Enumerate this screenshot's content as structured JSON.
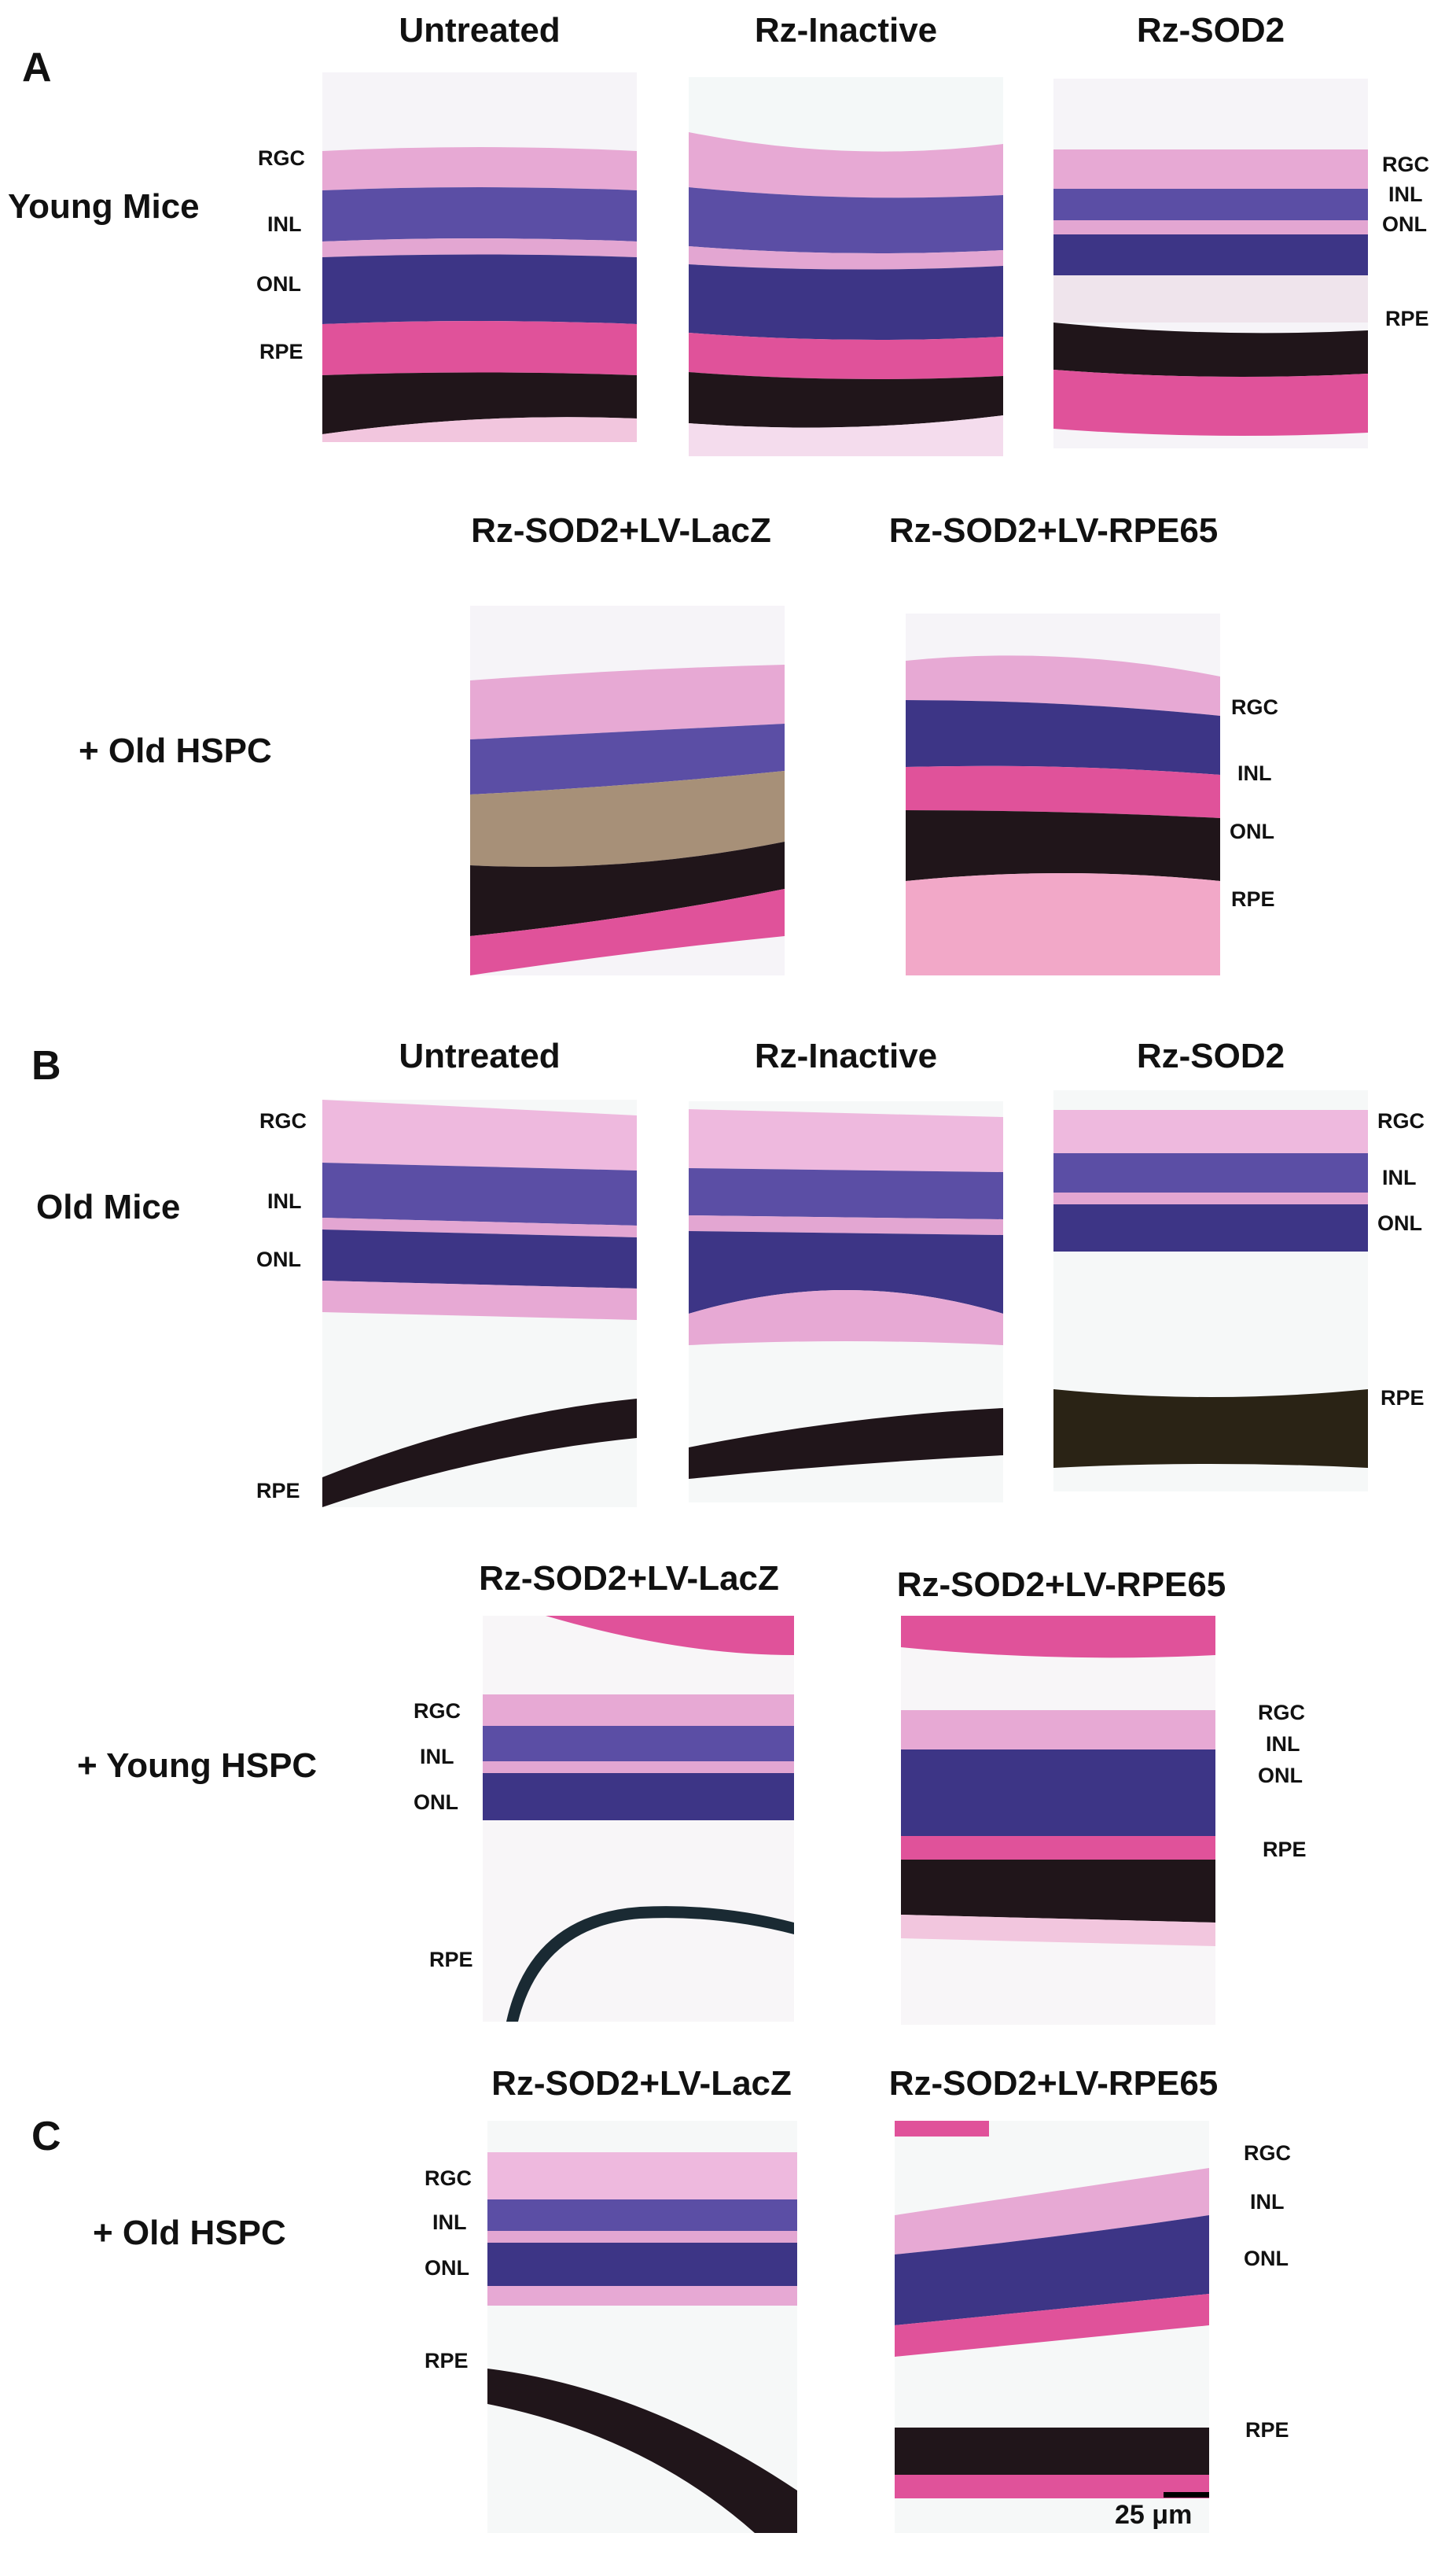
{
  "panels": {
    "A": {
      "letter": "A",
      "group1": "Young Mice",
      "group2": "+ Old HSPC",
      "titles": [
        "Untreated",
        "Rz-Inactive",
        "Rz-SOD2",
        "Rz-SOD2+LV-LacZ",
        "Rz-SOD2+LV-RPE65"
      ]
    },
    "B": {
      "letter": "B",
      "group1": "Old Mice",
      "group2": "+ Young HSPC",
      "titles": [
        "Untreated",
        "Rz-Inactive",
        "Rz-SOD2",
        "Rz-SOD2+LV-LacZ",
        "Rz-SOD2+LV-RPE65"
      ]
    },
    "C": {
      "letter": "C",
      "group1": "+ Old HSPC",
      "titles": [
        "Rz-SOD2+LV-LacZ",
        "Rz-SOD2+LV-RPE65"
      ]
    }
  },
  "layers": {
    "rgc": "RGC",
    "inl": "INL",
    "onl": "ONL",
    "rpe": "RPE"
  },
  "scale_bar": "25 μm",
  "images": {
    "a1": "retina micrograph",
    "a2": "retina micrograph",
    "a3": "retina micrograph",
    "a4": "retina micrograph",
    "a5": "retina micrograph",
    "b1": "retina micrograph",
    "b2": "retina micrograph",
    "b3": "retina micrograph",
    "b4": "retina micrograph",
    "b5": "retina micrograph",
    "c1": "retina micrograph",
    "c2": "retina micrograph"
  },
  "colors": {
    "pink": "#e7a9d4",
    "hot_pink": "#e0529a",
    "purple": "#4a3f96",
    "dark": "#20151a",
    "background": "#f6f4f8"
  }
}
